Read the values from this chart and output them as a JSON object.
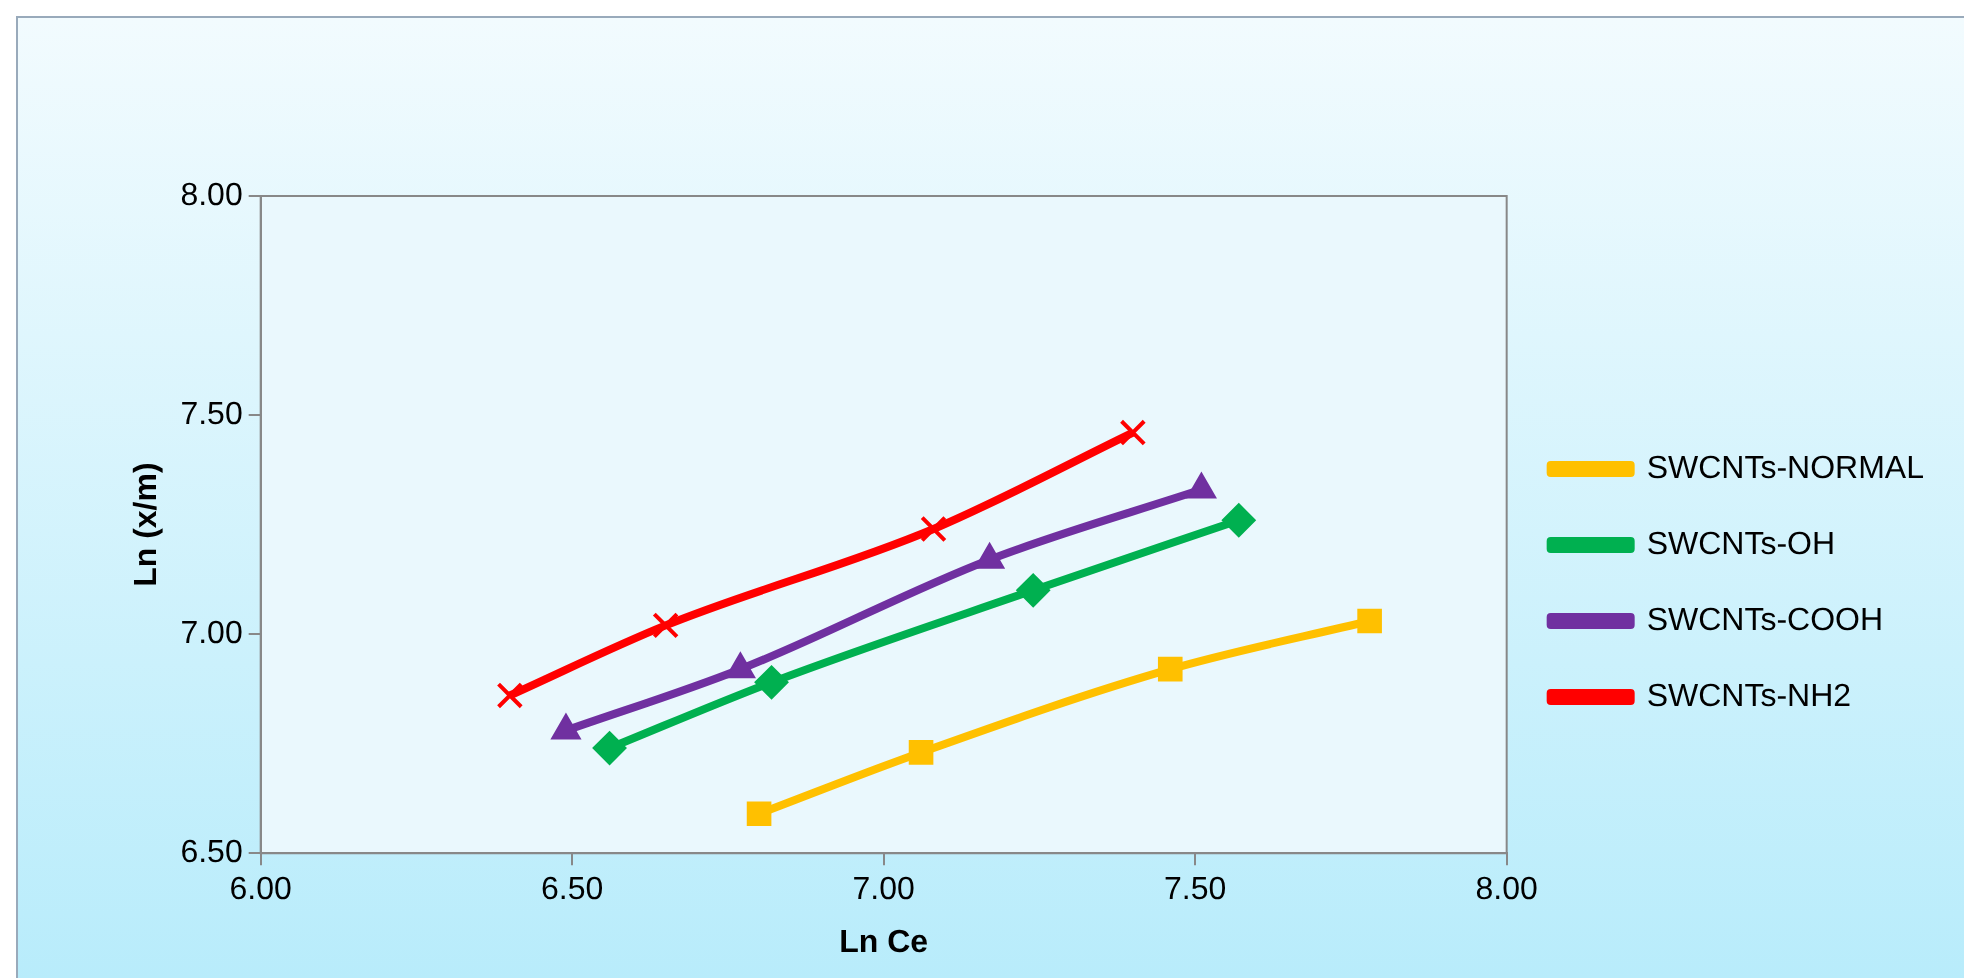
{
  "chart_data": {
    "type": "line",
    "xlabel": "Ln Ce",
    "ylabel": "Ln (x/m)",
    "xlim": [
      6,
      8
    ],
    "xticks": [
      {
        "value": 6,
        "label": "6.00"
      },
      {
        "value": 6.5,
        "label": "6.50"
      },
      {
        "value": 7,
        "label": "7.00"
      },
      {
        "value": 7.5,
        "label": "7.50"
      },
      {
        "value": 8,
        "label": "8.00"
      }
    ],
    "ylim": [
      6.5,
      8
    ],
    "yticks": [
      {
        "value": 6.5,
        "label": "6.50"
      },
      {
        "value": 7,
        "label": "7.00"
      },
      {
        "value": 7.5,
        "label": "7.50"
      },
      {
        "value": 8,
        "label": "8.00"
      }
    ],
    "grid": false,
    "legend": "right",
    "series": [
      {
        "name": "SWCNTs-NORMAL",
        "color": "#ffc000",
        "marker": "square",
        "x": [
          6.8,
          7.06,
          7.46,
          7.78
        ],
        "values": [
          6.59,
          6.73,
          6.92,
          7.03
        ]
      },
      {
        "name": "SWCNTs-OH",
        "color": "#00b050",
        "marker": "diamond",
        "x": [
          6.56,
          6.82,
          7.24,
          7.57
        ],
        "values": [
          6.74,
          6.89,
          7.1,
          7.26
        ]
      },
      {
        "name": "SWCNTs-COOH",
        "color": "#7030a0",
        "marker": "triangle",
        "x": [
          6.49,
          6.77,
          7.17,
          7.51
        ],
        "values": [
          6.78,
          6.92,
          7.17,
          7.33
        ]
      },
      {
        "name": "SWCNTs-NH2",
        "color": "#ff0000",
        "marker": "cross",
        "x": [
          6.4,
          6.65,
          7.08,
          7.4
        ],
        "values": [
          6.86,
          7.02,
          7.24,
          7.46
        ]
      }
    ]
  }
}
